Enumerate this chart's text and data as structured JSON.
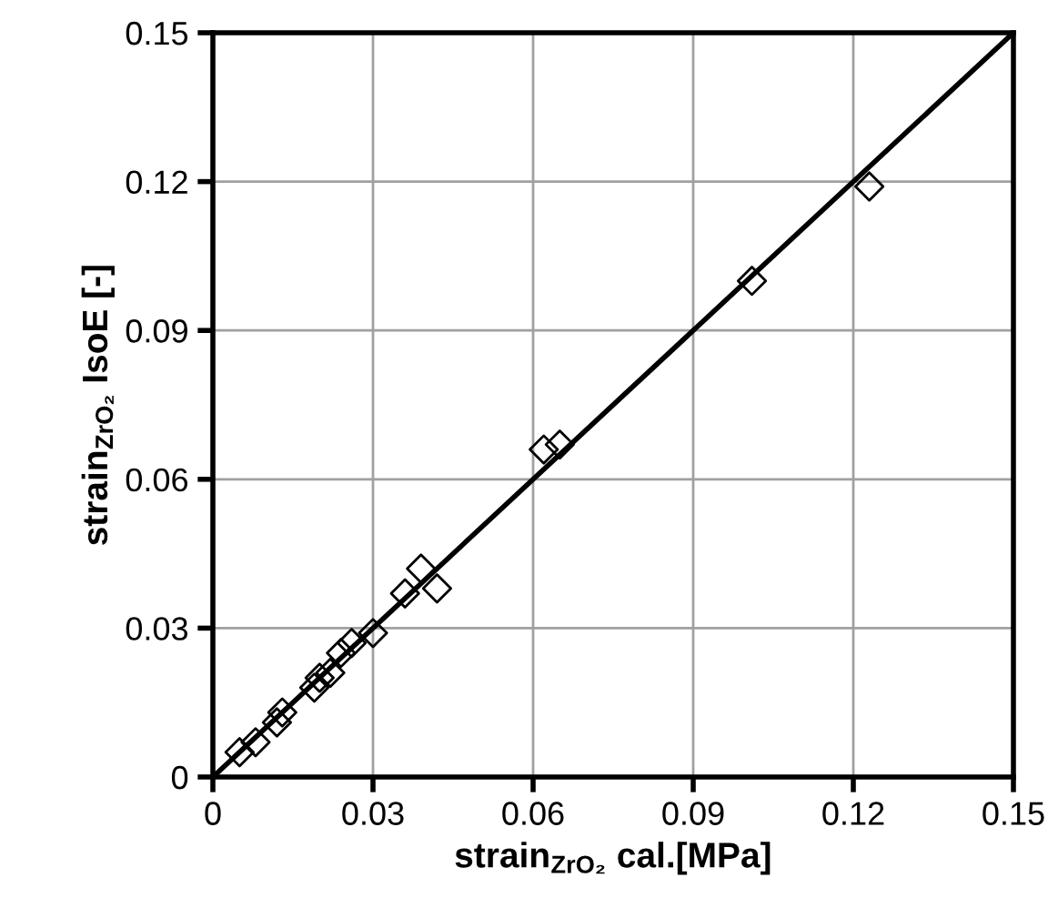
{
  "chart_data": {
    "type": "scatter",
    "xlabel": "strain$_{ZrO₂}$ cal.[MPa]",
    "ylabel": "strain$_{ZrO₂}$ IsoE [-]",
    "series": [
      {
        "color": "#000000",
        "marker": "diamond",
        "x": [
          0.005,
          0.008,
          0.012,
          0.013,
          0.019,
          0.02,
          0.022,
          0.024,
          0.026,
          0.03,
          0.036,
          0.039,
          0.042,
          0.062,
          0.065,
          0.101,
          0.123
        ],
        "values": [
          0.005,
          0.007,
          0.011,
          0.013,
          0.018,
          0.02,
          0.021,
          0.025,
          0.027,
          0.029,
          0.037,
          0.042,
          0.038,
          0.066,
          0.067,
          0.1,
          0.119
        ]
      },
      {
        "type": "line",
        "color": "#000000",
        "marker": "none",
        "line_style": "solid",
        "x": [
          0,
          0.15
        ],
        "values": [
          0,
          0.15
        ]
      }
    ],
    "xlim": [
      0,
      0.15
    ],
    "ylim": [
      0,
      0.15
    ],
    "xticks": [
      0,
      0.03,
      0.06,
      0.09,
      0.12,
      0.15
    ],
    "yticks": [
      0,
      0.03,
      0.06,
      0.09,
      0.12,
      0.15
    ],
    "grid": true,
    "legend": false
  }
}
